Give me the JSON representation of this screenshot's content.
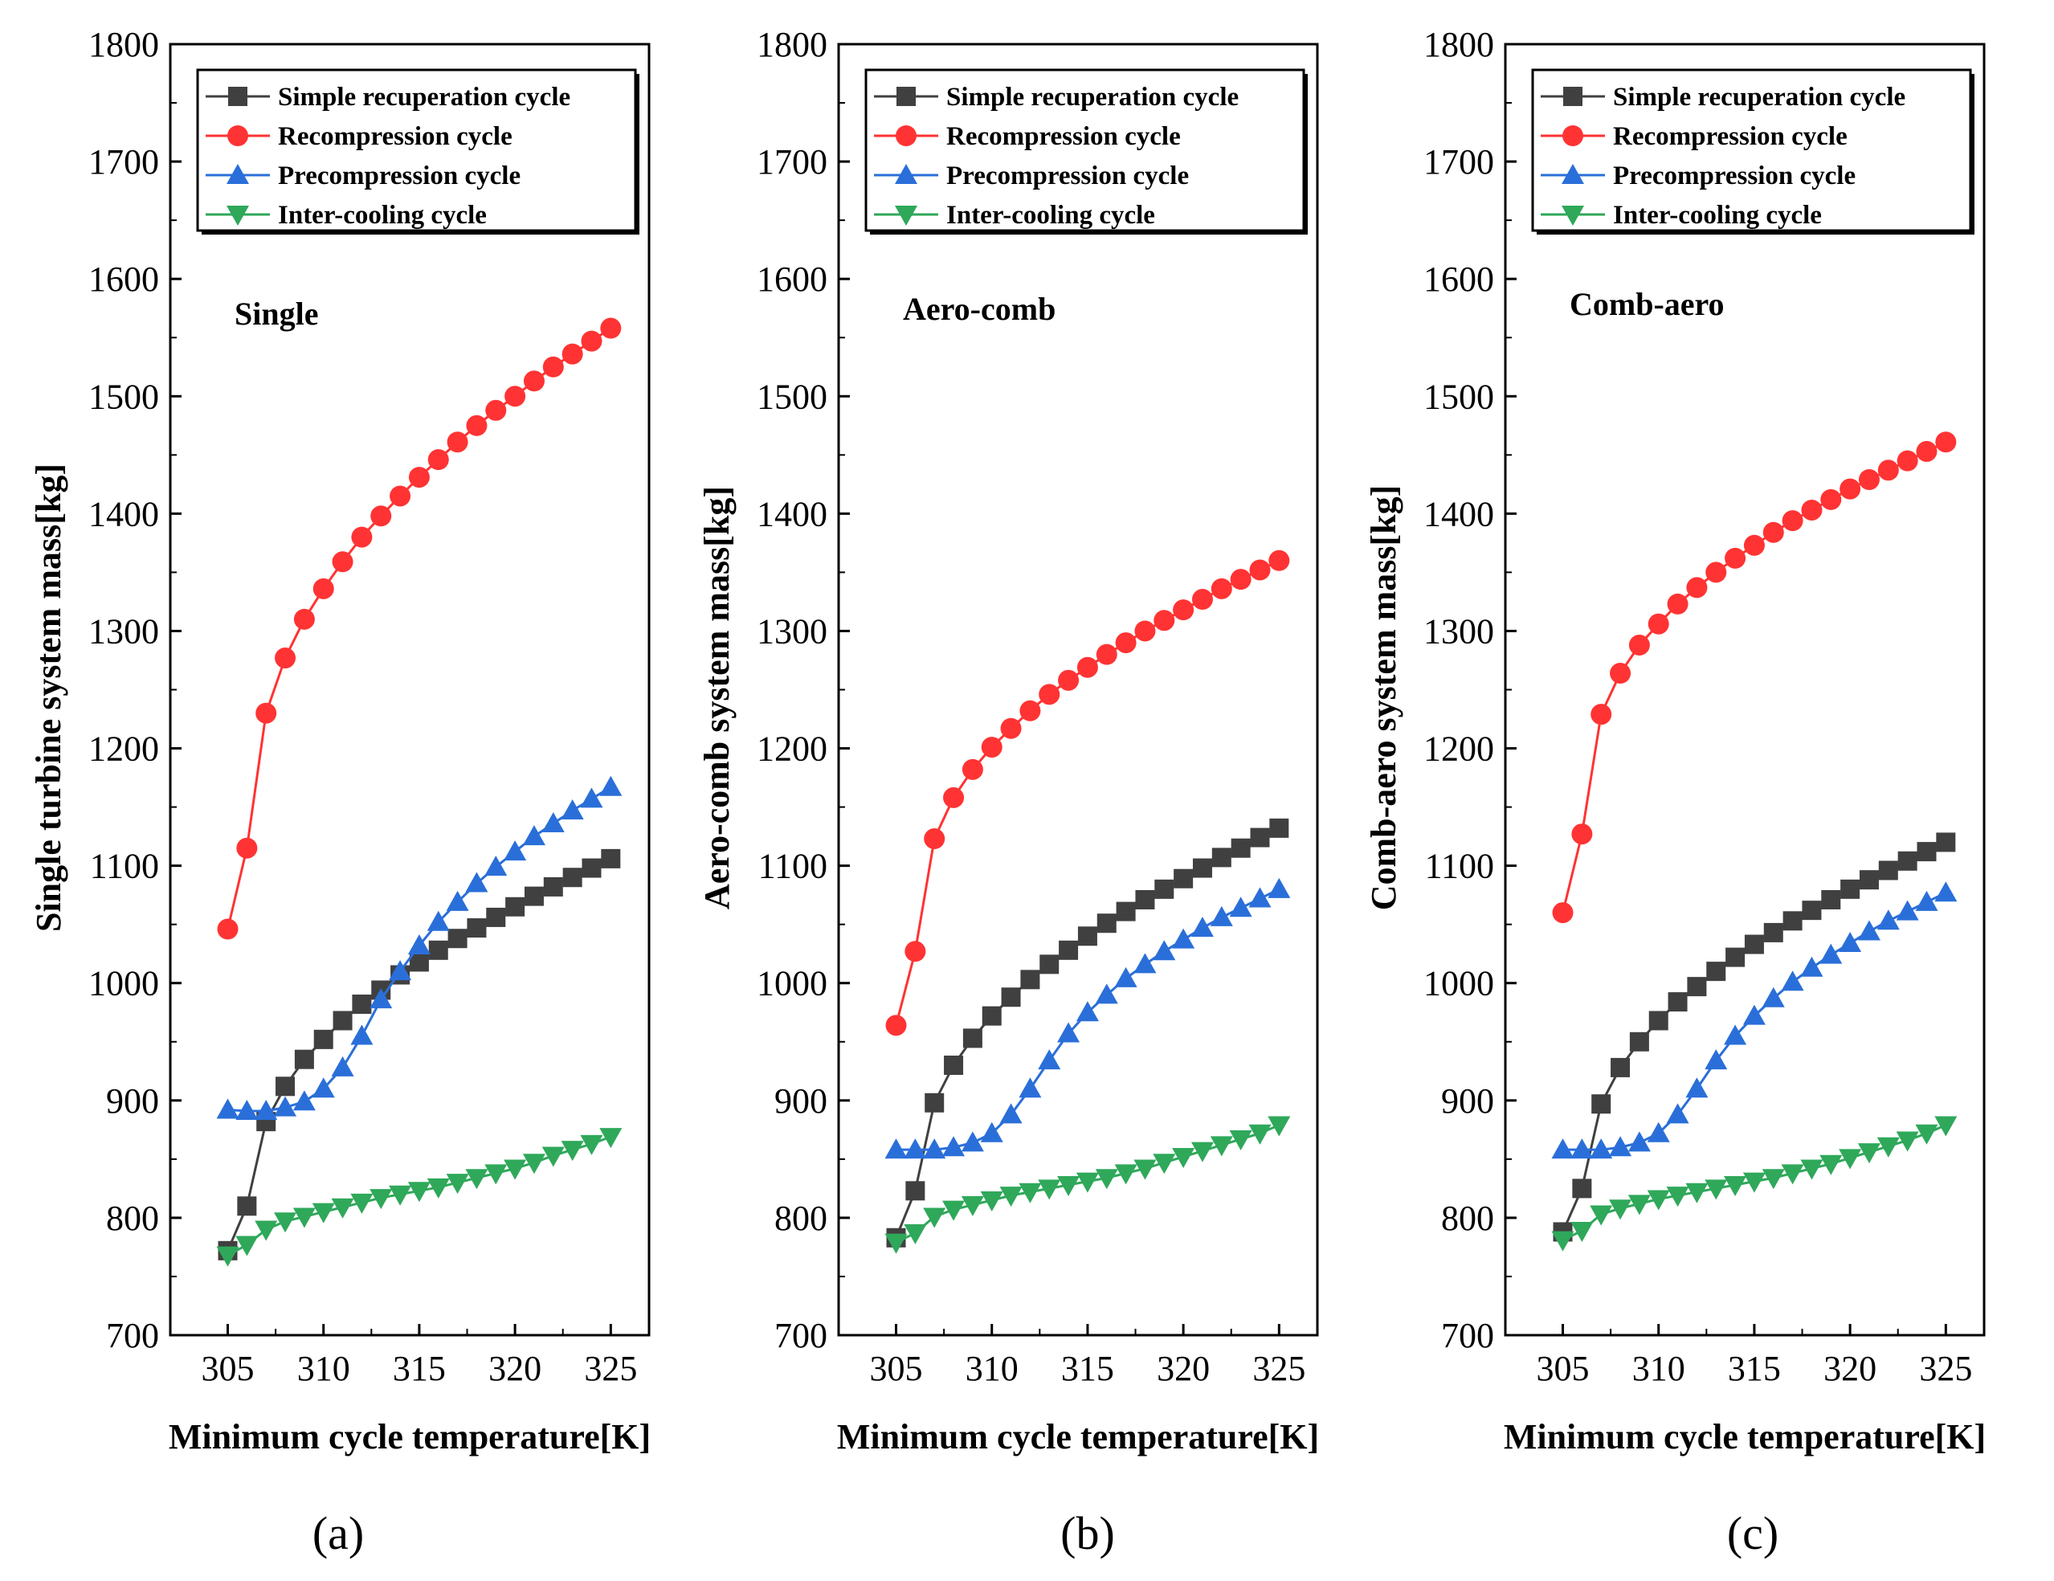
{
  "chart_data": [
    {
      "type": "line",
      "caption": "(a)",
      "panel_label": "Single",
      "xlabel": "Minimum cycle temperature[K]",
      "ylabel": "Single turbine system mass[kg]",
      "xlim": [
        302,
        327
      ],
      "ylim": [
        700,
        1800
      ],
      "xticks": [
        305,
        310,
        315,
        320,
        325
      ],
      "yticks": [
        700,
        800,
        900,
        1000,
        1100,
        1200,
        1300,
        1400,
        1500,
        1600,
        1700,
        1800
      ],
      "legend_position": "top-left",
      "x": [
        305,
        306,
        307,
        308,
        309,
        310,
        311,
        312,
        313,
        314,
        315,
        316,
        317,
        318,
        319,
        320,
        321,
        322,
        323,
        324,
        325
      ],
      "series": [
        {
          "name": "Simple recuperation cycle",
          "color": "#404040",
          "marker": "square",
          "values": [
            772,
            810,
            882,
            912,
            935,
            952,
            968,
            982,
            994,
            1007,
            1018,
            1028,
            1038,
            1047,
            1056,
            1065,
            1074,
            1082,
            1090,
            1098,
            1106
          ]
        },
        {
          "name": "Recompression cycle",
          "color": "#ff3333",
          "marker": "circle",
          "values": [
            1046,
            1115,
            1230,
            1277,
            1310,
            1336,
            1359,
            1380,
            1398,
            1415,
            1431,
            1446,
            1461,
            1475,
            1488,
            1500,
            1513,
            1525,
            1536,
            1547,
            1558
          ]
        },
        {
          "name": "Precompression cycle",
          "color": "#2a6fd9",
          "marker": "triangle-up",
          "values": [
            892,
            891,
            891,
            894,
            899,
            910,
            928,
            955,
            986,
            1010,
            1032,
            1052,
            1069,
            1085,
            1099,
            1112,
            1125,
            1136,
            1147,
            1157,
            1167
          ]
        },
        {
          "name": "Inter-cooling cycle",
          "color": "#2fa85a",
          "marker": "triangle-down",
          "values": [
            768,
            777,
            790,
            797,
            801,
            805,
            809,
            813,
            817,
            820,
            823,
            826,
            830,
            834,
            838,
            842,
            847,
            853,
            858,
            863,
            869
          ]
        }
      ]
    },
    {
      "type": "line",
      "caption": "(b)",
      "panel_label": "Aero-comb",
      "xlabel": "Minimum cycle temperature[K]",
      "ylabel": "Aero-comb system mass[kg]",
      "xlim": [
        302,
        327
      ],
      "ylim": [
        700,
        1800
      ],
      "xticks": [
        305,
        310,
        315,
        320,
        325
      ],
      "yticks": [
        700,
        800,
        900,
        1000,
        1100,
        1200,
        1300,
        1400,
        1500,
        1600,
        1700,
        1800
      ],
      "legend_position": "top-left",
      "x": [
        305,
        306,
        307,
        308,
        309,
        310,
        311,
        312,
        313,
        314,
        315,
        316,
        317,
        318,
        319,
        320,
        321,
        322,
        323,
        324,
        325
      ],
      "series": [
        {
          "name": "Simple recuperation cycle",
          "color": "#404040",
          "marker": "square",
          "values": [
            783,
            823,
            898,
            930,
            953,
            972,
            988,
            1003,
            1016,
            1028,
            1040,
            1051,
            1061,
            1071,
            1080,
            1089,
            1098,
            1107,
            1115,
            1124,
            1132
          ]
        },
        {
          "name": "Recompression cycle",
          "color": "#ff3333",
          "marker": "circle",
          "values": [
            964,
            1027,
            1123,
            1158,
            1182,
            1201,
            1217,
            1232,
            1246,
            1258,
            1269,
            1280,
            1290,
            1300,
            1309,
            1318,
            1327,
            1336,
            1344,
            1352,
            1360
          ]
        },
        {
          "name": "Precompression cycle",
          "color": "#2a6fd9",
          "marker": "triangle-up",
          "values": [
            858,
            858,
            858,
            860,
            864,
            872,
            888,
            910,
            934,
            957,
            975,
            990,
            1004,
            1016,
            1027,
            1037,
            1047,
            1056,
            1064,
            1072,
            1080
          ]
        },
        {
          "name": "Inter-cooling cycle",
          "color": "#2fa85a",
          "marker": "triangle-down",
          "values": [
            779,
            787,
            801,
            807,
            811,
            815,
            819,
            822,
            825,
            828,
            831,
            834,
            838,
            842,
            847,
            852,
            857,
            862,
            867,
            872,
            879
          ]
        }
      ]
    },
    {
      "type": "line",
      "caption": "(c)",
      "panel_label": "Comb-aero",
      "xlabel": "Minimum cycle temperature[K]",
      "ylabel": "Comb-aero system mass[kg]",
      "xlim": [
        302,
        327
      ],
      "ylim": [
        700,
        1800
      ],
      "xticks": [
        305,
        310,
        315,
        320,
        325
      ],
      "yticks": [
        700,
        800,
        900,
        1000,
        1100,
        1200,
        1300,
        1400,
        1500,
        1600,
        1700,
        1800
      ],
      "legend_position": "top-left",
      "x": [
        305,
        306,
        307,
        308,
        309,
        310,
        311,
        312,
        313,
        314,
        315,
        316,
        317,
        318,
        319,
        320,
        321,
        322,
        323,
        324,
        325
      ],
      "series": [
        {
          "name": "Simple recuperation cycle",
          "color": "#404040",
          "marker": "square",
          "values": [
            788,
            825,
            897,
            928,
            950,
            968,
            984,
            997,
            1010,
            1022,
            1033,
            1043,
            1053,
            1062,
            1071,
            1080,
            1088,
            1096,
            1104,
            1112,
            1120
          ]
        },
        {
          "name": "Recompression cycle",
          "color": "#ff3333",
          "marker": "circle",
          "values": [
            1060,
            1127,
            1229,
            1264,
            1288,
            1306,
            1323,
            1337,
            1350,
            1362,
            1373,
            1384,
            1394,
            1403,
            1412,
            1421,
            1429,
            1437,
            1445,
            1453,
            1461
          ]
        },
        {
          "name": "Precompression cycle",
          "color": "#2a6fd9",
          "marker": "triangle-up",
          "values": [
            858,
            858,
            858,
            860,
            864,
            872,
            888,
            910,
            934,
            955,
            972,
            987,
            1001,
            1013,
            1024,
            1034,
            1044,
            1053,
            1061,
            1069,
            1077
          ]
        },
        {
          "name": "Inter-cooling cycle",
          "color": "#2fa85a",
          "marker": "triangle-down",
          "values": [
            781,
            789,
            803,
            808,
            812,
            816,
            819,
            822,
            825,
            828,
            831,
            834,
            838,
            842,
            846,
            851,
            856,
            861,
            866,
            872,
            879
          ]
        }
      ]
    }
  ]
}
